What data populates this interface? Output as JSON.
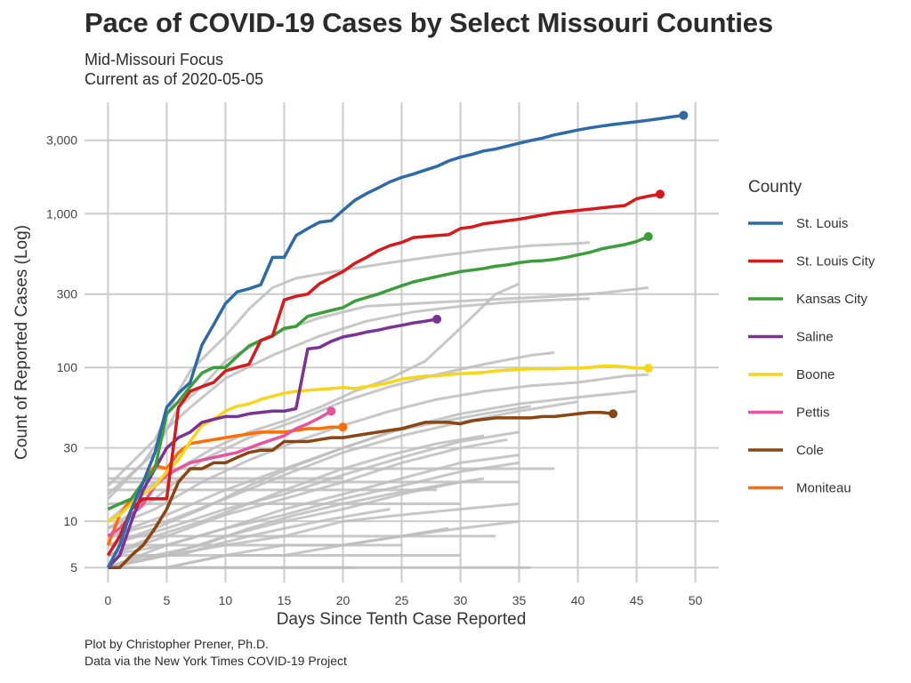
{
  "header": {
    "title": "Pace of COVID-19 Cases by Select Missouri Counties",
    "subtitle_line1": "Mid-Missouri Focus",
    "subtitle_line2": "Current as of 2020-05-05"
  },
  "caption": {
    "line1": "Plot by Christopher Prener, Ph.D.",
    "line2": "Data via the New York Times COVID-19 Project"
  },
  "chart_data": {
    "type": "line",
    "xlabel": "Days Since Tenth Case Reported",
    "ylabel": "Count of Reported Cases (Log)",
    "y_scale": "log",
    "xlim": [
      -2,
      52
    ],
    "ylim": [
      4,
      5300
    ],
    "x_ticks": [
      0,
      5,
      10,
      15,
      20,
      25,
      30,
      35,
      40,
      45,
      50
    ],
    "x_tick_labels": [
      "0",
      "5",
      "10",
      "15",
      "20",
      "25",
      "30",
      "35",
      "40",
      "45",
      "50"
    ],
    "y_ticks": [
      5,
      10,
      30,
      100,
      300,
      1000,
      3000
    ],
    "y_tick_labels": [
      "5",
      "10",
      "30",
      "100",
      "300",
      "1,000",
      "3,000"
    ],
    "grid": true,
    "legend": {
      "title": "County",
      "placement": "right"
    },
    "series": [
      {
        "name": "St. Louis",
        "color": "#2c6aa8",
        "x": [
          0,
          1,
          2,
          3,
          4,
          5,
          6,
          7,
          8,
          9,
          10,
          11,
          12,
          13,
          14,
          15,
          16,
          17,
          18,
          19,
          20,
          21,
          22,
          23,
          24,
          25,
          26,
          27,
          28,
          29,
          30,
          31,
          32,
          33,
          34,
          35,
          36,
          37,
          38,
          39,
          40,
          41,
          42,
          43,
          44,
          45,
          46,
          47,
          48,
          49
        ],
        "y": [
          5,
          7,
          12,
          18,
          28,
          55,
          68,
          80,
          140,
          190,
          260,
          310,
          325,
          345,
          520,
          520,
          720,
          800,
          880,
          900,
          1050,
          1220,
          1350,
          1470,
          1610,
          1720,
          1810,
          1920,
          2030,
          2200,
          2330,
          2430,
          2560,
          2630,
          2750,
          2870,
          2990,
          3100,
          3250,
          3370,
          3500,
          3610,
          3710,
          3800,
          3880,
          3960,
          4050,
          4150,
          4260,
          4360
        ]
      },
      {
        "name": "St. Louis City",
        "color": "#d7191c",
        "x": [
          0,
          1,
          2,
          3,
          4,
          5,
          6,
          7,
          8,
          9,
          10,
          11,
          12,
          13,
          14,
          15,
          16,
          17,
          18,
          19,
          20,
          21,
          22,
          23,
          24,
          25,
          26,
          27,
          28,
          29,
          30,
          31,
          32,
          33,
          34,
          35,
          36,
          37,
          38,
          39,
          40,
          41,
          42,
          43,
          44,
          45,
          46,
          47
        ],
        "y": [
          6,
          8,
          12,
          14,
          14,
          14,
          55,
          70,
          75,
          80,
          95,
          100,
          105,
          150,
          160,
          275,
          290,
          300,
          350,
          385,
          420,
          475,
          520,
          575,
          620,
          650,
          700,
          710,
          720,
          730,
          800,
          820,
          860,
          880,
          900,
          920,
          950,
          980,
          1010,
          1030,
          1050,
          1070,
          1090,
          1110,
          1130,
          1250,
          1300,
          1340
        ]
      },
      {
        "name": "Kansas City",
        "color": "#3a9e3a",
        "x": [
          0,
          1,
          2,
          3,
          4,
          5,
          6,
          7,
          8,
          9,
          10,
          11,
          12,
          13,
          14,
          15,
          16,
          17,
          18,
          19,
          20,
          21,
          22,
          23,
          24,
          25,
          26,
          27,
          28,
          29,
          30,
          31,
          32,
          33,
          34,
          35,
          36,
          37,
          38,
          39,
          40,
          41,
          42,
          43,
          44,
          45,
          46
        ],
        "y": [
          12,
          13,
          14,
          18,
          22,
          50,
          60,
          75,
          92,
          100,
          100,
          118,
          138,
          150,
          160,
          180,
          185,
          215,
          225,
          235,
          245,
          270,
          285,
          300,
          320,
          340,
          360,
          375,
          390,
          405,
          420,
          430,
          440,
          455,
          465,
          480,
          490,
          495,
          505,
          520,
          540,
          560,
          590,
          610,
          630,
          660,
          710
        ]
      },
      {
        "name": "Saline",
        "color": "#7b3294",
        "x": [
          0,
          1,
          2,
          3,
          4,
          5,
          6,
          7,
          8,
          9,
          10,
          11,
          12,
          13,
          14,
          15,
          16,
          17,
          18,
          19,
          20,
          21,
          22,
          23,
          24,
          25,
          26,
          27,
          28
        ],
        "y": [
          5,
          6,
          10,
          16,
          22,
          30,
          35,
          38,
          44,
          46,
          48,
          48,
          50,
          51,
          52,
          52,
          54,
          132,
          135,
          148,
          158,
          163,
          170,
          175,
          182,
          188,
          195,
          200,
          206
        ]
      },
      {
        "name": "Boone",
        "color": "#f7d618",
        "x": [
          0,
          1,
          2,
          3,
          4,
          5,
          6,
          7,
          8,
          9,
          10,
          11,
          12,
          13,
          14,
          15,
          16,
          17,
          18,
          19,
          20,
          21,
          22,
          23,
          24,
          25,
          26,
          27,
          28,
          29,
          30,
          31,
          32,
          33,
          34,
          35,
          36,
          37,
          38,
          39,
          40,
          41,
          42,
          43,
          44,
          45,
          46
        ],
        "y": [
          10,
          11,
          13,
          15,
          17,
          21,
          25,
          33,
          42,
          46,
          52,
          56,
          58,
          62,
          65,
          68,
          70,
          71,
          72,
          73,
          74,
          73,
          75,
          77,
          80,
          84,
          86,
          88,
          88,
          90,
          91,
          92,
          93,
          95,
          96,
          97,
          98,
          98,
          98,
          99,
          99,
          100,
          102,
          102,
          101,
          99,
          99
        ]
      },
      {
        "name": "Pettis",
        "color": "#e6549e",
        "x": [
          0,
          1,
          2,
          3,
          4,
          5,
          6,
          7,
          8,
          9,
          10,
          11,
          12,
          13,
          14,
          15,
          16,
          17,
          18,
          19
        ],
        "y": [
          8,
          9,
          11,
          13,
          17,
          20,
          22,
          24,
          25,
          26,
          27,
          28,
          30,
          32,
          34,
          36,
          40,
          43,
          47,
          52
        ]
      },
      {
        "name": "Cole",
        "color": "#8b4513",
        "x": [
          0,
          1,
          2,
          3,
          4,
          5,
          6,
          7,
          8,
          9,
          10,
          11,
          12,
          13,
          14,
          15,
          16,
          17,
          18,
          19,
          20,
          21,
          22,
          23,
          24,
          25,
          26,
          27,
          28,
          29,
          30,
          31,
          32,
          33,
          34,
          35,
          36,
          37,
          38,
          39,
          40,
          41,
          42,
          43
        ],
        "y": [
          5,
          5,
          6,
          7,
          9,
          12,
          18,
          22,
          22,
          24,
          24,
          26,
          28,
          29,
          29,
          33,
          33,
          33,
          34,
          35,
          35,
          36,
          37,
          38,
          39,
          40,
          42,
          44,
          44,
          44,
          43,
          45,
          46,
          47,
          47,
          47,
          47,
          48,
          48,
          49,
          50,
          51,
          51,
          50
        ]
      },
      {
        "name": "Moniteau",
        "color": "#ff6d00",
        "x": [
          0,
          1,
          2,
          3,
          4,
          5,
          6,
          7,
          8,
          9,
          10,
          11,
          12,
          13,
          14,
          15,
          16,
          17,
          18,
          19,
          20
        ],
        "y": [
          7,
          11,
          14,
          18,
          23,
          22,
          28,
          32,
          33,
          34,
          35,
          36,
          37,
          38,
          38,
          38,
          39,
          40,
          40,
          41,
          41
        ]
      }
    ],
    "background_series": [
      {
        "x": [
          0,
          4,
          6,
          7,
          10,
          12,
          14,
          16,
          20,
          24,
          28,
          32,
          36,
          40,
          41
        ],
        "y": [
          17,
          34,
          70,
          95,
          160,
          240,
          330,
          380,
          430,
          480,
          530,
          580,
          620,
          640,
          650
        ]
      },
      {
        "x": [
          0,
          4,
          6,
          8,
          10,
          14,
          18,
          22,
          26,
          30,
          34,
          38,
          42,
          46
        ],
        "y": [
          15,
          28,
          55,
          75,
          110,
          165,
          210,
          250,
          260,
          270,
          280,
          290,
          305,
          330
        ]
      },
      {
        "x": [
          0,
          3,
          5,
          7,
          10,
          14,
          18,
          22,
          26,
          30,
          34,
          38,
          41
        ],
        "y": [
          14,
          24,
          40,
          55,
          85,
          120,
          160,
          200,
          230,
          250,
          265,
          275,
          280
        ]
      },
      {
        "x": [
          0,
          3,
          6,
          9,
          12,
          15,
          18,
          21,
          24,
          27,
          30,
          33,
          35
        ],
        "y": [
          10,
          16,
          22,
          30,
          38,
          45,
          55,
          70,
          85,
          110,
          180,
          300,
          350
        ]
      },
      {
        "x": [
          0,
          4,
          8,
          12,
          16,
          20,
          24,
          28,
          32,
          36,
          38
        ],
        "y": [
          9,
          14,
          25,
          35,
          45,
          60,
          75,
          90,
          105,
          120,
          125
        ]
      },
      {
        "x": [
          0,
          4,
          8,
          12,
          16,
          20,
          24,
          28,
          32,
          36,
          40,
          44,
          46
        ],
        "y": [
          9,
          12,
          18,
          25,
          33,
          42,
          52,
          62,
          70,
          76,
          80,
          88,
          90
        ]
      },
      {
        "x": [
          0,
          5,
          10,
          15,
          20,
          25,
          30,
          35,
          40,
          45
        ],
        "y": [
          8,
          11,
          16,
          22,
          30,
          40,
          50,
          58,
          64,
          70
        ]
      },
      {
        "x": [
          0,
          5,
          10,
          15,
          20,
          25,
          30,
          35,
          40
        ],
        "y": [
          8,
          10,
          14,
          20,
          28,
          36,
          44,
          52,
          60
        ]
      },
      {
        "x": [
          0,
          4,
          8,
          12,
          16,
          20,
          24,
          28,
          32,
          36
        ],
        "y": [
          7,
          9,
          12,
          17,
          23,
          30,
          38,
          44,
          50,
          56
        ]
      },
      {
        "x": [
          0,
          5,
          10,
          15,
          20,
          25,
          30,
          35
        ],
        "y": [
          7,
          9,
          12,
          15,
          20,
          26,
          33,
          38
        ]
      },
      {
        "x": [
          0,
          5,
          10,
          15,
          20,
          25,
          30,
          34
        ],
        "y": [
          6,
          8,
          11,
          14,
          18,
          24,
          30,
          34
        ]
      },
      {
        "x": [
          0,
          4,
          8,
          12,
          16,
          20,
          24,
          28,
          32
        ],
        "y": [
          6,
          8,
          10,
          13,
          17,
          22,
          27,
          32,
          36
        ]
      },
      {
        "x": [
          0,
          5,
          10,
          15,
          20,
          25,
          30,
          35
        ],
        "y": [
          6,
          7,
          9,
          12,
          15,
          19,
          24,
          27
        ]
      },
      {
        "x": [
          0,
          5,
          10,
          15,
          20,
          25,
          30,
          35
        ],
        "y": [
          5,
          7,
          9,
          11,
          14,
          17,
          21,
          24
        ]
      },
      {
        "x": [
          0,
          5,
          10,
          15,
          20,
          25,
          30
        ],
        "y": [
          5,
          6,
          8,
          10,
          12,
          15,
          18
        ]
      },
      {
        "x": [
          0,
          4,
          8,
          12,
          16,
          20,
          24,
          28,
          32
        ],
        "y": [
          5,
          6,
          7,
          9,
          11,
          13,
          15,
          17,
          19
        ]
      },
      {
        "x": [
          0,
          5,
          10,
          15,
          20,
          25,
          30,
          35
        ],
        "y": [
          5,
          6,
          7,
          8,
          10,
          11,
          12,
          13
        ]
      },
      {
        "x": [
          0,
          3,
          6,
          9,
          12,
          15,
          18,
          21,
          24
        ],
        "y": [
          5,
          6,
          6,
          7,
          8,
          9,
          10,
          11,
          12
        ]
      },
      {
        "x": [
          0,
          5,
          10,
          15,
          20,
          25,
          30,
          35
        ],
        "y": [
          5,
          5,
          6,
          7,
          7,
          8,
          9,
          10
        ]
      },
      {
        "x": [
          0,
          5,
          10,
          15,
          20,
          25,
          29
        ],
        "y": [
          5,
          5,
          6,
          6,
          7,
          8,
          9
        ]
      },
      {
        "x": [
          0,
          36
        ],
        "y": [
          5,
          5
        ]
      },
      {
        "x": [
          0,
          21
        ],
        "y": [
          5,
          5
        ]
      },
      {
        "x": [
          0,
          30
        ],
        "y": [
          6,
          6
        ]
      },
      {
        "x": [
          0,
          25
        ],
        "y": [
          7,
          7
        ]
      },
      {
        "x": [
          0,
          33
        ],
        "y": [
          8,
          8
        ]
      },
      {
        "x": [
          0,
          20
        ],
        "y": [
          19,
          19
        ]
      },
      {
        "x": [
          0,
          38
        ],
        "y": [
          22,
          22
        ]
      },
      {
        "x": [
          0,
          35
        ],
        "y": [
          18,
          18
        ]
      },
      {
        "x": [
          0,
          28
        ],
        "y": [
          16,
          16
        ]
      },
      {
        "x": [
          0,
          30
        ],
        "y": [
          13,
          13
        ]
      }
    ]
  }
}
